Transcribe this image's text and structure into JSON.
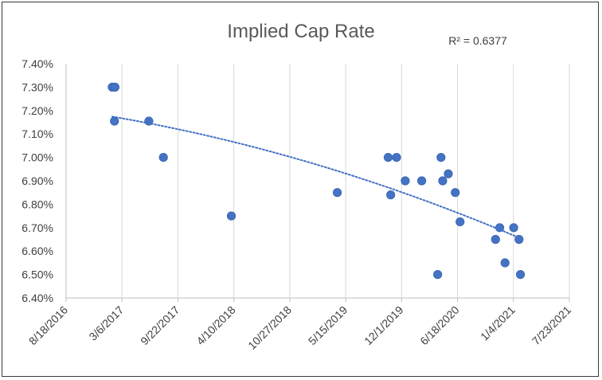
{
  "chart_data": {
    "type": "scatter",
    "title": "Implied Cap Rate",
    "annotation": "R² = 0.6377",
    "xlabel": "",
    "ylabel": "",
    "x_axis": {
      "type": "date",
      "min": "2016-08-18",
      "max": "2021-07-23",
      "tick_labels": [
        "8/18/2016",
        "3/6/2017",
        "9/22/2017",
        "4/10/2018",
        "10/27/2018",
        "5/15/2019",
        "12/1/2019",
        "6/18/2020",
        "1/4/2021",
        "7/23/2021"
      ]
    },
    "y_axis": {
      "min": 6.4,
      "max": 7.4,
      "step": 0.1,
      "format": "percent",
      "tick_labels": [
        "6.40%",
        "6.50%",
        "6.60%",
        "6.70%",
        "6.80%",
        "6.90%",
        "7.00%",
        "7.10%",
        "7.20%",
        "7.30%",
        "7.40%"
      ]
    },
    "grid": {
      "vertical": true,
      "horizontal": false
    },
    "legend": "none",
    "marker_color": "#4472C4",
    "trendline": {
      "type": "polynomial",
      "style": "dotted",
      "color": "#4472C4",
      "r_squared": 0.6377
    },
    "series": [
      {
        "points": [
          {
            "x": "2017-01-30",
            "y": 7.3
          },
          {
            "x": "2017-02-09",
            "y": 7.3
          },
          {
            "x": "2017-02-07",
            "y": 7.155
          },
          {
            "x": "2017-06-10",
            "y": 7.155
          },
          {
            "x": "2017-08-01",
            "y": 7.0
          },
          {
            "x": "2018-04-01",
            "y": 6.75
          },
          {
            "x": "2019-04-15",
            "y": 6.85
          },
          {
            "x": "2019-10-14",
            "y": 7.0
          },
          {
            "x": "2019-10-23",
            "y": 6.84
          },
          {
            "x": "2019-11-13",
            "y": 7.0
          },
          {
            "x": "2019-12-14",
            "y": 6.9
          },
          {
            "x": "2020-02-11",
            "y": 6.9
          },
          {
            "x": "2020-04-08",
            "y": 6.5
          },
          {
            "x": "2020-04-20",
            "y": 7.0
          },
          {
            "x": "2020-04-26",
            "y": 6.9
          },
          {
            "x": "2020-05-16",
            "y": 6.93
          },
          {
            "x": "2020-06-10",
            "y": 6.85
          },
          {
            "x": "2020-06-27",
            "y": 6.725
          },
          {
            "x": "2020-11-01",
            "y": 6.65
          },
          {
            "x": "2020-11-16",
            "y": 6.7
          },
          {
            "x": "2020-12-05",
            "y": 6.55
          },
          {
            "x": "2021-01-05",
            "y": 6.7
          },
          {
            "x": "2021-01-24",
            "y": 6.65
          },
          {
            "x": "2021-01-29",
            "y": 6.5
          }
        ]
      }
    ]
  }
}
